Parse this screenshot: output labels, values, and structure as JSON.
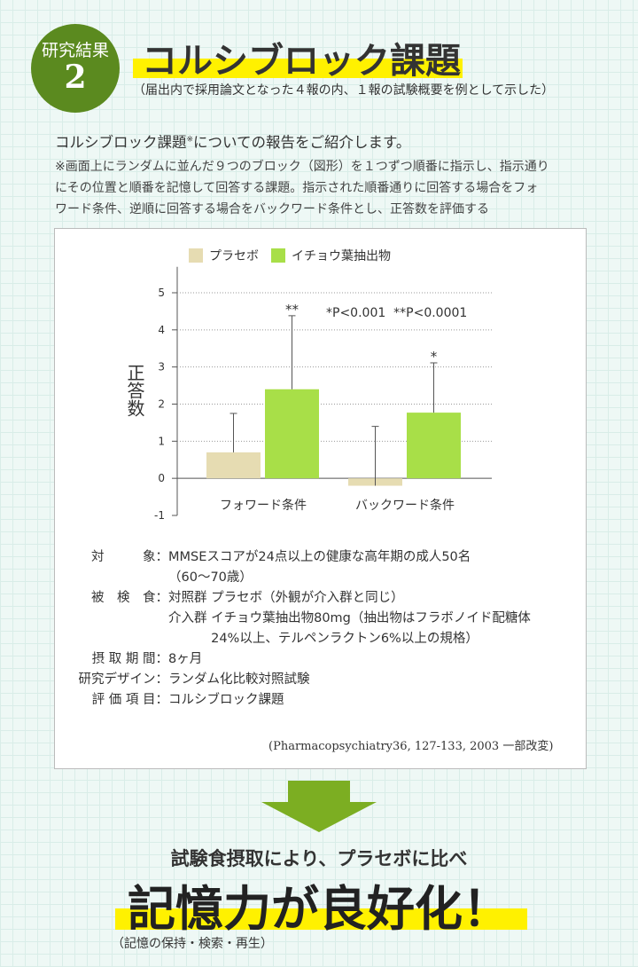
{
  "header": {
    "badge": "研究結果",
    "number": "2",
    "title": "コルシブロック課題",
    "subtitle": "（届出内で採用論文となった４報の内、１報の試験概要を例として示した）"
  },
  "intro": {
    "heading": "コルシブロック課題",
    "heading_mark": "※",
    "heading_rest": "についての報告をご紹介します。",
    "note": [
      "※画面上にランダムに並んだ９つのブロック（図形）を１つずつ順番に指示し、指示通り",
      "にその位置と順番を記憶して回答する課題。指示された順番通りに回答する場合をフォ",
      "ワード条件、逆順に回答する場合をバックワード条件とし、正答数を評価する"
    ]
  },
  "chart_data": {
    "type": "bar",
    "y_label": "正答数",
    "categories": [
      "フォワード条件",
      "バックワード条件"
    ],
    "series": [
      {
        "name": "プラセボ",
        "color": "#e6dcb2",
        "values": [
          0.7,
          -0.2
        ],
        "errors": [
          1.05,
          1.6
        ]
      },
      {
        "name": "イチョウ葉抽出物",
        "color": "#a8df48",
        "values": [
          2.4,
          1.77
        ],
        "errors": [
          1.98,
          1.34
        ],
        "significance": [
          "**",
          "*"
        ]
      }
    ],
    "annotation": "*P<0.001  **P<0.0001",
    "ylim": [
      -1,
      5.7
    ],
    "yticks": [
      -1,
      0,
      1,
      2,
      3,
      4,
      5
    ],
    "grid": true
  },
  "details": [
    {
      "label": "対　　　象：",
      "lines": [
        "MMSEスコアが24点以上の健康な高年期の成人50名",
        "（60～70歳）"
      ]
    },
    {
      "label": "被　検　食：",
      "lines": [
        "対照群 プラセボ（外観が介入群と同じ）",
        "介入群 イチョウ葉抽出物80mg（抽出物はフラボノイド配糖体",
        "　　　 24%以上、テルペンラクトン6%以上の規格）"
      ]
    },
    {
      "label": "摂 取 期 間：",
      "lines": [
        "8ヶ月"
      ]
    },
    {
      "label": "研究デザイン：",
      "lines": [
        "ランダム化比較対照試験"
      ]
    },
    {
      "label": "評 価 項 目：",
      "lines": [
        "コルシブロック課題"
      ]
    }
  ],
  "citation": "(Pharmacopsychiatry36, 127-133, 2003 一部改変)",
  "conclusion": {
    "lead": "試験食摂取により、プラセボに比べ",
    "headline": "記憶力が良好化！",
    "note": "（記憶の保持・検索・再生）"
  }
}
